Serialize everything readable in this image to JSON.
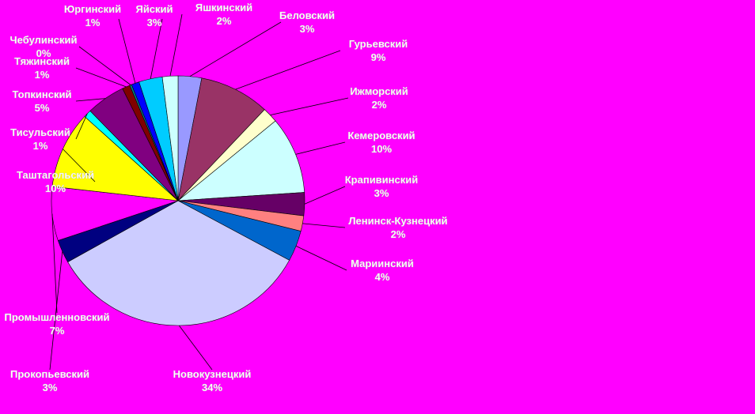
{
  "colors": {
    "background": "#ff00ff",
    "leader_line": "#000000",
    "slice_border": "#000000"
  },
  "chart_data": {
    "type": "pie",
    "title": "",
    "legend": "none",
    "slices": [
      {
        "name": "Беловский",
        "value": 3,
        "label": "3%",
        "color": "#9999ff"
      },
      {
        "name": "Гурьевский",
        "value": 9,
        "label": "9%",
        "color": "#993366"
      },
      {
        "name": "Ижморский",
        "value": 2,
        "label": "2%",
        "color": "#ffffcc"
      },
      {
        "name": "Кемеровский",
        "value": 10,
        "label": "10%",
        "color": "#ccffff"
      },
      {
        "name": "Крапивинский",
        "value": 3,
        "label": "3%",
        "color": "#660066"
      },
      {
        "name": "Ленинск-Кузнецкий",
        "value": 2,
        "label": "2%",
        "color": "#ff8080"
      },
      {
        "name": "Мариинский",
        "value": 4,
        "label": "4%",
        "color": "#0066cc"
      },
      {
        "name": "Новокузнецкий",
        "value": 34,
        "label": "34%",
        "color": "#ccccff"
      },
      {
        "name": "Прокопьевский",
        "value": 3,
        "label": "3%",
        "color": "#000080"
      },
      {
        "name": "Промышленновский",
        "value": 7,
        "label": "7%",
        "color": "#ff00ff"
      },
      {
        "name": "Таштагольский",
        "value": 10,
        "label": "10%",
        "color": "#ffff00"
      },
      {
        "name": "Тисульский",
        "value": 1,
        "label": "1%",
        "color": "#00ffff"
      },
      {
        "name": "Топкинский",
        "value": 5,
        "label": "5%",
        "color": "#800080"
      },
      {
        "name": "Тяжинский",
        "value": 1,
        "label": "1%",
        "color": "#800000"
      },
      {
        "name": "Чебулинский",
        "value": 0,
        "label": "0%",
        "color": "#008080"
      },
      {
        "name": "Юргинский",
        "value": 1,
        "label": "1%",
        "color": "#0000ff"
      },
      {
        "name": "Яйский",
        "value": 3,
        "label": "3%",
        "color": "#00ccff"
      },
      {
        "name": "Яшкинский",
        "value": 2,
        "label": "2%",
        "color": "#ccffff"
      }
    ]
  }
}
